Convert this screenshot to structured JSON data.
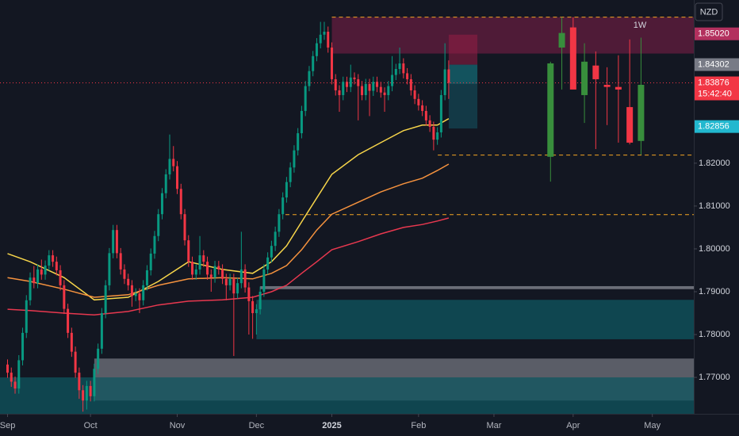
{
  "chart_data": {
    "type": "candlestick",
    "currency": "NZD",
    "timeframe_label": "1W",
    "xlim": [
      -2,
      182
    ],
    "ylim": [
      1.7615,
      1.8581
    ],
    "xticks": [
      {
        "value": 0,
        "label": "Sep"
      },
      {
        "value": 22,
        "label": "Oct"
      },
      {
        "value": 45,
        "label": "Nov"
      },
      {
        "value": 66,
        "label": "Dec"
      },
      {
        "value": 86,
        "label": "2025"
      },
      {
        "value": 109,
        "label": "Feb"
      },
      {
        "value": 129,
        "label": "Mar"
      },
      {
        "value": 150,
        "label": "Apr"
      },
      {
        "value": 171,
        "label": "May"
      }
    ],
    "yticks": [
      {
        "value": 1.82,
        "label": "1.82000"
      },
      {
        "value": 1.81,
        "label": "1.81000"
      },
      {
        "value": 1.8,
        "label": "1.80000"
      },
      {
        "value": 1.79,
        "label": "1.79000"
      },
      {
        "value": 1.78,
        "label": "1.78000"
      },
      {
        "value": 1.77,
        "label": "1.77000"
      }
    ],
    "up_color": "#089981",
    "down_color": "#f23645",
    "daily": {
      "open": [
        1.773,
        1.7711,
        1.769,
        1.7674,
        1.774,
        1.7804,
        1.788,
        1.7933,
        1.792,
        1.7952,
        1.794,
        1.7961,
        1.7985,
        1.797,
        1.795,
        1.7915,
        1.786,
        1.7804,
        1.776,
        1.7711,
        1.767,
        1.7646,
        1.768,
        1.7656,
        1.772,
        1.7767,
        1.785,
        1.7915,
        1.799,
        1.8044,
        1.799,
        1.7952,
        1.793,
        1.7915,
        1.789,
        1.7896,
        1.788,
        1.7915,
        1.795,
        1.7989,
        1.803,
        1.8081,
        1.813,
        1.8174,
        1.821,
        1.8193,
        1.814,
        1.8081,
        1.802,
        1.797,
        1.794,
        1.7952,
        1.7985,
        1.797,
        1.794,
        1.7933,
        1.796,
        1.7952,
        1.793,
        1.7915,
        1.793,
        1.7896,
        1.792,
        1.7952,
        1.791,
        1.7878,
        1.785,
        1.7859,
        1.79,
        1.7952,
        1.798,
        1.8007,
        1.804,
        1.8081,
        1.812,
        1.8156,
        1.819,
        1.823,
        1.827,
        1.8322,
        1.838,
        1.8415,
        1.845,
        1.848,
        1.85,
        1.8507,
        1.847,
        1.8396,
        1.837,
        1.8359,
        1.839,
        1.8378,
        1.84,
        1.8396,
        1.838,
        1.8359,
        1.8385,
        1.8369,
        1.839,
        1.8378,
        1.8365,
        1.8359,
        1.838,
        1.8406,
        1.842,
        1.8433,
        1.841,
        1.8396,
        1.837,
        1.835,
        1.8335,
        1.8322,
        1.83,
        1.8285,
        1.8255,
        1.8272,
        1.8359,
        1.8419
      ],
      "high": [
        1.7742,
        1.7723,
        1.7702,
        1.7752,
        1.7816,
        1.7892,
        1.7945,
        1.796,
        1.7964,
        1.7975,
        1.7973,
        1.7997,
        1.7997,
        1.7982,
        1.7962,
        1.7927,
        1.7872,
        1.7816,
        1.7772,
        1.7723,
        1.7682,
        1.7692,
        1.7692,
        1.7732,
        1.7779,
        1.7862,
        1.7927,
        1.8002,
        1.8056,
        1.8056,
        1.8002,
        1.7964,
        1.7942,
        1.7927,
        1.7908,
        1.7908,
        1.7927,
        1.7962,
        1.8001,
        1.8042,
        1.8093,
        1.8142,
        1.8186,
        1.8267,
        1.824,
        1.8205,
        1.8152,
        1.8093,
        1.8032,
        1.7982,
        1.7964,
        1.803,
        1.7997,
        1.7982,
        1.7952,
        1.7972,
        1.7972,
        1.7964,
        1.7942,
        1.7942,
        1.7942,
        1.7932,
        1.804,
        1.7964,
        1.7922,
        1.789,
        1.7871,
        1.7912,
        1.7964,
        1.7992,
        1.8019,
        1.8052,
        1.8093,
        1.8132,
        1.8168,
        1.8202,
        1.8242,
        1.8282,
        1.8334,
        1.8392,
        1.8427,
        1.8462,
        1.8492,
        1.853,
        1.853,
        1.8519,
        1.8482,
        1.8408,
        1.8382,
        1.8402,
        1.8402,
        1.843,
        1.8412,
        1.8408,
        1.8392,
        1.8397,
        1.8397,
        1.8402,
        1.8402,
        1.839,
        1.8377,
        1.8392,
        1.845,
        1.8432,
        1.847,
        1.8445,
        1.8422,
        1.8408,
        1.8382,
        1.8362,
        1.8347,
        1.8334,
        1.8312,
        1.8297,
        1.8284,
        1.8371,
        1.848,
        1.844
      ],
      "low": [
        1.7699,
        1.7678,
        1.7662,
        1.7662,
        1.7728,
        1.7792,
        1.7868,
        1.7908,
        1.7908,
        1.7928,
        1.7928,
        1.7949,
        1.7958,
        1.7938,
        1.7903,
        1.7848,
        1.7792,
        1.7748,
        1.7699,
        1.765,
        1.762,
        1.7625,
        1.7644,
        1.7644,
        1.7708,
        1.7755,
        1.7838,
        1.7903,
        1.7978,
        1.7978,
        1.794,
        1.7918,
        1.7903,
        1.7865,
        1.7878,
        1.785,
        1.7868,
        1.7903,
        1.7938,
        1.7977,
        1.8018,
        1.8069,
        1.8118,
        1.8162,
        1.8181,
        1.8128,
        1.8069,
        1.8008,
        1.7958,
        1.7928,
        1.7928,
        1.794,
        1.7958,
        1.7928,
        1.79,
        1.7921,
        1.794,
        1.7918,
        1.788,
        1.7903,
        1.775,
        1.7884,
        1.7908,
        1.7898,
        1.78,
        1.779,
        1.78,
        1.7847,
        1.7888,
        1.794,
        1.7968,
        1.7995,
        1.8028,
        1.8069,
        1.8108,
        1.8144,
        1.8178,
        1.8218,
        1.8258,
        1.831,
        1.8368,
        1.8403,
        1.8438,
        1.8468,
        1.8488,
        1.8458,
        1.8384,
        1.8358,
        1.832,
        1.8347,
        1.8366,
        1.8366,
        1.8384,
        1.83,
        1.8347,
        1.8347,
        1.831,
        1.8357,
        1.8366,
        1.8353,
        1.832,
        1.8347,
        1.8368,
        1.8394,
        1.8408,
        1.8398,
        1.8384,
        1.8358,
        1.8338,
        1.8323,
        1.831,
        1.8288,
        1.8273,
        1.823,
        1.8243,
        1.826,
        1.8347,
        1.835
      ],
      "close": [
        1.7711,
        1.769,
        1.7674,
        1.774,
        1.7804,
        1.788,
        1.7933,
        1.792,
        1.7952,
        1.794,
        1.7961,
        1.7985,
        1.797,
        1.795,
        1.7915,
        1.786,
        1.7804,
        1.776,
        1.7711,
        1.767,
        1.7646,
        1.768,
        1.7656,
        1.772,
        1.7767,
        1.785,
        1.7915,
        1.799,
        1.8044,
        1.799,
        1.7952,
        1.793,
        1.7915,
        1.789,
        1.7896,
        1.788,
        1.7915,
        1.795,
        1.7989,
        1.803,
        1.8081,
        1.813,
        1.8174,
        1.821,
        1.8193,
        1.814,
        1.8081,
        1.802,
        1.797,
        1.794,
        1.7952,
        1.7985,
        1.797,
        1.794,
        1.7933,
        1.796,
        1.7952,
        1.793,
        1.7915,
        1.793,
        1.7896,
        1.792,
        1.7952,
        1.791,
        1.7878,
        1.785,
        1.7859,
        1.79,
        1.7952,
        1.798,
        1.8007,
        1.804,
        1.8081,
        1.812,
        1.8156,
        1.819,
        1.823,
        1.827,
        1.8322,
        1.838,
        1.8415,
        1.845,
        1.848,
        1.85,
        1.8507,
        1.847,
        1.8396,
        1.837,
        1.8359,
        1.839,
        1.8378,
        1.84,
        1.8396,
        1.838,
        1.8359,
        1.8385,
        1.8369,
        1.839,
        1.8378,
        1.8365,
        1.8359,
        1.838,
        1.8406,
        1.842,
        1.8433,
        1.841,
        1.8396,
        1.837,
        1.835,
        1.8335,
        1.8322,
        1.83,
        1.8285,
        1.8255,
        1.8272,
        1.8359,
        1.8419,
        1.83876
      ]
    },
    "weekly": {
      "up_color": "#388e3c",
      "x": [
        144,
        147,
        150,
        153,
        156,
        159,
        162,
        165,
        168
      ],
      "open": [
        1.8215,
        1.847,
        1.8517,
        1.8359,
        1.8428,
        1.8383,
        1.8378,
        1.8331,
        1.8252
      ],
      "high": [
        1.8437,
        1.8541,
        1.8541,
        1.848,
        1.8461,
        1.8424,
        1.8452,
        1.8489,
        1.8493
      ],
      "low": [
        1.8157,
        1.8372,
        1.8374,
        1.8294,
        1.8233,
        1.8289,
        1.8248,
        1.8244,
        1.822
      ],
      "close": [
        1.8433,
        1.8504,
        1.8372,
        1.8437,
        1.8396,
        1.8378,
        1.8372,
        1.8248,
        1.8383
      ]
    },
    "series": [
      {
        "color": "#f7d54a",
        "x": [
          0,
          6,
          15,
          23,
          32,
          40,
          48,
          57,
          65,
          70,
          74,
          78,
          82,
          86,
          93,
          99,
          105,
          110,
          114,
          117
        ],
        "values": [
          1.7989,
          1.797,
          1.7933,
          1.7881,
          1.7887,
          1.7924,
          1.797,
          1.7952,
          1.7943,
          1.797,
          1.8007,
          1.8063,
          1.8119,
          1.8174,
          1.822,
          1.8248,
          1.8276,
          1.8289,
          1.8289,
          1.8304
        ]
      },
      {
        "color": "#f5923e",
        "x": [
          0,
          6,
          15,
          23,
          32,
          40,
          48,
          57,
          65,
          70,
          74,
          78,
          82,
          86,
          93,
          99,
          105,
          110,
          114,
          117
        ],
        "values": [
          1.7933,
          1.7924,
          1.7906,
          1.7887,
          1.7893,
          1.7915,
          1.793,
          1.7933,
          1.793,
          1.7943,
          1.7961,
          1.7998,
          1.8044,
          1.8081,
          1.8109,
          1.8133,
          1.8152,
          1.8165,
          1.8183,
          1.8198
        ]
      },
      {
        "color": "#e8384f",
        "x": [
          0,
          6,
          15,
          23,
          32,
          40,
          48,
          57,
          65,
          70,
          74,
          78,
          82,
          86,
          93,
          99,
          105,
          110,
          114,
          117
        ],
        "values": [
          1.7859,
          1.7856,
          1.785,
          1.7846,
          1.7854,
          1.7869,
          1.7878,
          1.7881,
          1.7887,
          1.79,
          1.7915,
          1.7943,
          1.797,
          1.7998,
          1.8017,
          1.8035,
          1.805,
          1.8057,
          1.8065,
          1.8072
        ]
      }
    ],
    "zones": [
      {
        "xlim": [
          86,
          182
        ],
        "ylim": [
          1.8456,
          1.8541
        ],
        "color": "rgba(120,30,70,0.6)"
      },
      {
        "xlim": [
          117,
          124.6
        ],
        "ylim": [
          1.843,
          1.85
        ],
        "color": "rgba(150,30,70,0.55)"
      },
      {
        "xlim": [
          117,
          124.6
        ],
        "ylim": [
          1.8385,
          1.843
        ],
        "color": "rgba(20,110,120,0.7)"
      },
      {
        "xlim": [
          117,
          124.6
        ],
        "ylim": [
          1.8281,
          1.8385
        ],
        "color": "rgba(20,80,95,0.6)"
      },
      {
        "xlim": [
          67,
          182
        ],
        "ylim": [
          1.7906,
          1.7913
        ],
        "color": "#6b6e78"
      },
      {
        "xlim": [
          66,
          182
        ],
        "ylim": [
          1.7789,
          1.7881
        ],
        "color": "#0f4650"
      },
      {
        "xlim": [
          23,
          182
        ],
        "ylim": [
          1.7646,
          1.7744
        ],
        "color": "rgba(150,152,160,0.55)"
      },
      {
        "xlim": [
          -2,
          182
        ],
        "ylim": [
          1.7615,
          1.77
        ],
        "color": "rgba(15,85,95,0.75)"
      }
    ],
    "levels": [
      {
        "value": 1.8541,
        "xlim": [
          86,
          182
        ],
        "color": "#f5a623"
      },
      {
        "value": 1.8219,
        "xlim": [
          114.1,
          182
        ],
        "color": "#f5a623"
      },
      {
        "value": 1.808,
        "xlim": [
          73.7,
          182
        ],
        "color": "#f5a623"
      },
      {
        "value": 1.83876,
        "xlim": [
          -2,
          182
        ],
        "color": "#f23645"
      }
    ],
    "price_markers": [
      {
        "value": 1.8502,
        "label": "1.85020",
        "color": "#b3305e"
      },
      {
        "value": 1.84302,
        "label": "1.84302",
        "color": "#787b86"
      },
      {
        "value": 1.83876,
        "label": "1.83876",
        "color": "#f23645",
        "countdown": "15:42:40"
      },
      {
        "value": 1.82856,
        "label": "1.82856",
        "color": "#22b8cf"
      }
    ]
  }
}
